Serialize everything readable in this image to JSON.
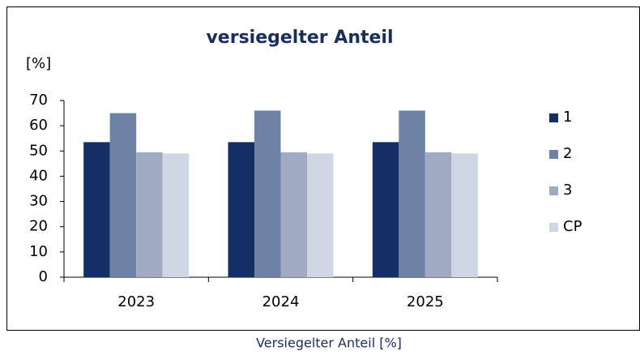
{
  "chart_data": {
    "type": "bar",
    "title": "versiegelter Anteil",
    "ylabel": "[%]",
    "categories": [
      "2023",
      "2024",
      "2025"
    ],
    "series": [
      {
        "name": "1",
        "color": "#142f66",
        "values": [
          53.5,
          53.5,
          53.5
        ]
      },
      {
        "name": "2",
        "color": "#6e82a5",
        "values": [
          65,
          66,
          66
        ]
      },
      {
        "name": "3",
        "color": "#a0abc3",
        "values": [
          49.5,
          49.5,
          49.5
        ]
      },
      {
        "name": "CP",
        "color": "#cfd6e3",
        "values": [
          49,
          49,
          49
        ]
      }
    ],
    "ylim": [
      0,
      70
    ],
    "yticks": [
      0,
      10,
      20,
      30,
      40,
      50,
      60,
      70
    ],
    "grid": false,
    "legend": "right"
  },
  "caption": "Versiegelter Anteil [%]"
}
